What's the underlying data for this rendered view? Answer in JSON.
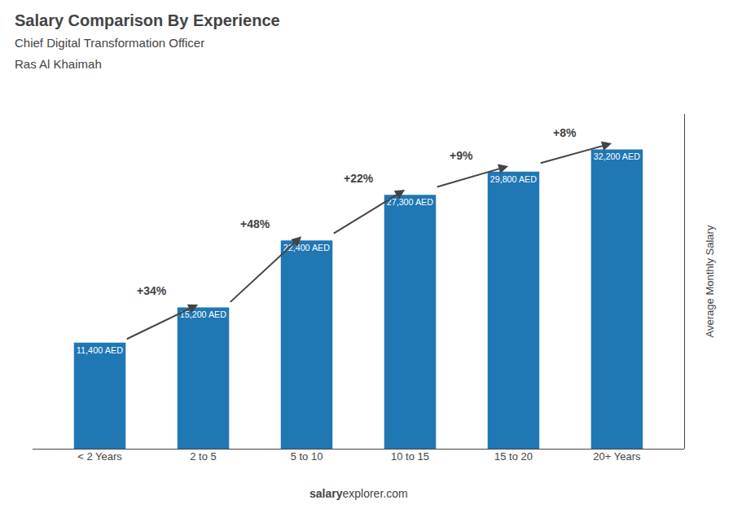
{
  "chart_data": {
    "type": "bar",
    "title": "Salary Comparison By Experience",
    "subtitle": [
      "Chief Digital Transformation Officer",
      "Ras Al Khaimah"
    ],
    "ylabel": "Average Monthly Salary",
    "categories": [
      "< 2 Years",
      "2 to 5",
      "5 to 10",
      "10 to 15",
      "15 to 20",
      "20+ Years"
    ],
    "values": [
      11400,
      15200,
      22400,
      27300,
      29800,
      32200
    ],
    "value_labels": [
      "11,400 AED",
      "15,200 AED",
      "22,400 AED",
      "27,300 AED",
      "29,800 AED",
      "32,200 AED"
    ],
    "data_labels": true,
    "annotations": [
      "+34%",
      "+48%",
      "+22%",
      "+9%",
      "+8%"
    ],
    "footer": [
      "salary",
      "explorer.com"
    ],
    "ylim": [
      0,
      36000
    ],
    "grid": false,
    "tick_labels": "x"
  }
}
